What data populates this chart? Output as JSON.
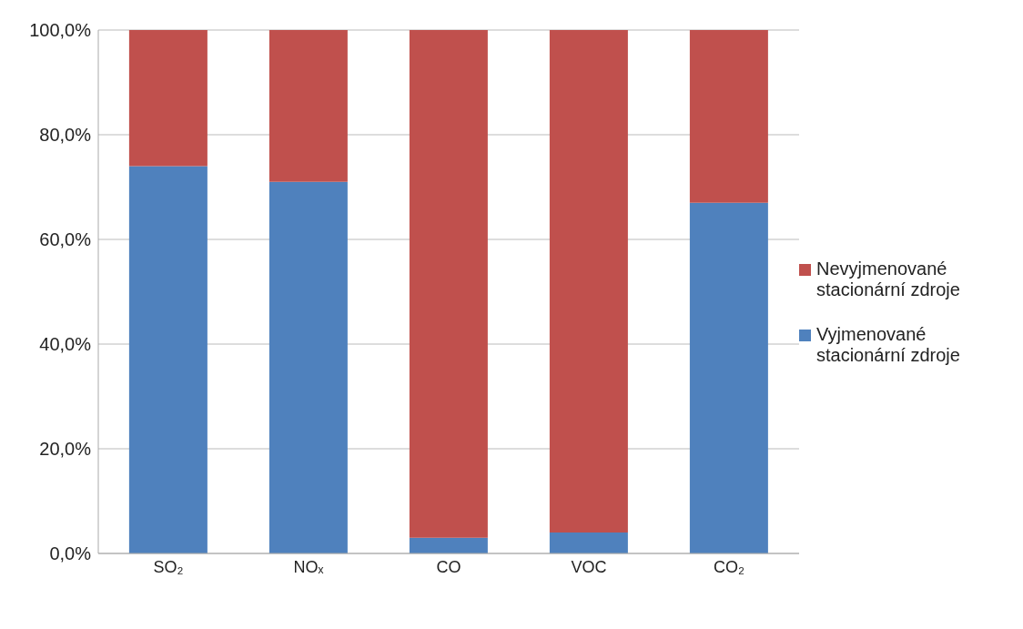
{
  "chart_data": {
    "type": "bar",
    "stacked": true,
    "categories": [
      "SO₂",
      "NOₓ",
      "CO",
      "VOC",
      "CO₂"
    ],
    "series": [
      {
        "name": "Vyjmenované stacionární zdroje",
        "color": "#4f81bd",
        "values": [
          74,
          71,
          3,
          4,
          67
        ]
      },
      {
        "name": "Nevyjmenované stacionární zdroje",
        "color": "#c0504d",
        "values": [
          26,
          29,
          97,
          96,
          33
        ]
      }
    ],
    "ylim": [
      0,
      100
    ],
    "yticks": [
      {
        "value": 0,
        "label": "0,0%"
      },
      {
        "value": 20,
        "label": "20,0%"
      },
      {
        "value": 40,
        "label": "40,0%"
      },
      {
        "value": 60,
        "label": "60,0%"
      },
      {
        "value": 80,
        "label": "80,0%"
      },
      {
        "value": 100,
        "label": "100,0%"
      }
    ],
    "grid": "y",
    "legend": "right"
  }
}
